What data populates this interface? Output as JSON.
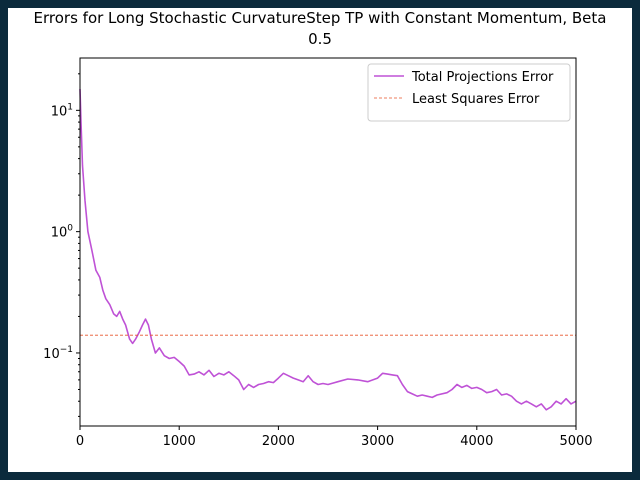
{
  "chart_data": {
    "type": "line",
    "title": "Errors for Long Stochastic CurvatureStep TP with Constant Momentum, Beta",
    "title_line2": "0.5",
    "xlabel": "",
    "ylabel": "",
    "xlim": [
      0,
      5000
    ],
    "ylim": [
      0.025,
      27
    ],
    "yscale": "log",
    "grid": false,
    "legend_position": "top-right",
    "x_ticks": [
      {
        "value": 0,
        "label": "0"
      },
      {
        "value": 1000,
        "label": "1000"
      },
      {
        "value": 2000,
        "label": "2000"
      },
      {
        "value": 3000,
        "label": "3000"
      },
      {
        "value": 4000,
        "label": "4000"
      },
      {
        "value": 5000,
        "label": "5000"
      }
    ],
    "y_ticks": [
      {
        "value": 10,
        "base": "10",
        "exp": "1"
      },
      {
        "value": 1,
        "base": "10",
        "exp": "0"
      },
      {
        "value": 0.1,
        "base": "10",
        "exp": "−1"
      }
    ],
    "series": [
      {
        "name": "Total Projections Error",
        "color": "#bf52d6",
        "style": "solid",
        "x": [
          0,
          10,
          25,
          50,
          80,
          120,
          160,
          200,
          230,
          260,
          300,
          340,
          370,
          400,
          430,
          460,
          500,
          530,
          560,
          600,
          630,
          660,
          690,
          720,
          760,
          800,
          850,
          900,
          950,
          1000,
          1050,
          1100,
          1150,
          1200,
          1250,
          1300,
          1350,
          1400,
          1450,
          1500,
          1550,
          1600,
          1650,
          1700,
          1750,
          1800,
          1850,
          1900,
          1950,
          2000,
          2050,
          2100,
          2150,
          2200,
          2250,
          2300,
          2350,
          2400,
          2450,
          2500,
          2600,
          2700,
          2800,
          2900,
          3000,
          3050,
          3100,
          3150,
          3200,
          3250,
          3300,
          3350,
          3400,
          3450,
          3500,
          3550,
          3600,
          3700,
          3750,
          3800,
          3850,
          3900,
          3950,
          4000,
          4050,
          4100,
          4150,
          4200,
          4250,
          4300,
          4350,
          4400,
          4450,
          4500,
          4550,
          4600,
          4650,
          4700,
          4750,
          4800,
          4850,
          4900,
          4950,
          5000
        ],
        "y": [
          15,
          8,
          3.5,
          1.8,
          1.0,
          0.7,
          0.48,
          0.42,
          0.33,
          0.28,
          0.25,
          0.21,
          0.2,
          0.22,
          0.19,
          0.17,
          0.13,
          0.12,
          0.13,
          0.15,
          0.17,
          0.19,
          0.17,
          0.13,
          0.1,
          0.11,
          0.095,
          0.09,
          0.092,
          0.085,
          0.078,
          0.066,
          0.067,
          0.07,
          0.066,
          0.072,
          0.064,
          0.068,
          0.066,
          0.07,
          0.065,
          0.06,
          0.05,
          0.055,
          0.052,
          0.055,
          0.056,
          0.058,
          0.057,
          0.062,
          0.068,
          0.065,
          0.062,
          0.06,
          0.058,
          0.065,
          0.058,
          0.055,
          0.056,
          0.055,
          0.058,
          0.061,
          0.06,
          0.058,
          0.062,
          0.068,
          0.067,
          0.066,
          0.065,
          0.055,
          0.048,
          0.046,
          0.044,
          0.045,
          0.044,
          0.043,
          0.045,
          0.047,
          0.05,
          0.055,
          0.052,
          0.054,
          0.051,
          0.052,
          0.05,
          0.047,
          0.048,
          0.05,
          0.045,
          0.046,
          0.044,
          0.04,
          0.038,
          0.04,
          0.038,
          0.036,
          0.038,
          0.034,
          0.036,
          0.04,
          0.038,
          0.042,
          0.038,
          0.04
        ]
      },
      {
        "name": "Least Squares Error",
        "color": "#e8542a",
        "style": "dashed",
        "x": [
          0,
          5000
        ],
        "y": [
          0.14,
          0.14
        ]
      }
    ]
  }
}
